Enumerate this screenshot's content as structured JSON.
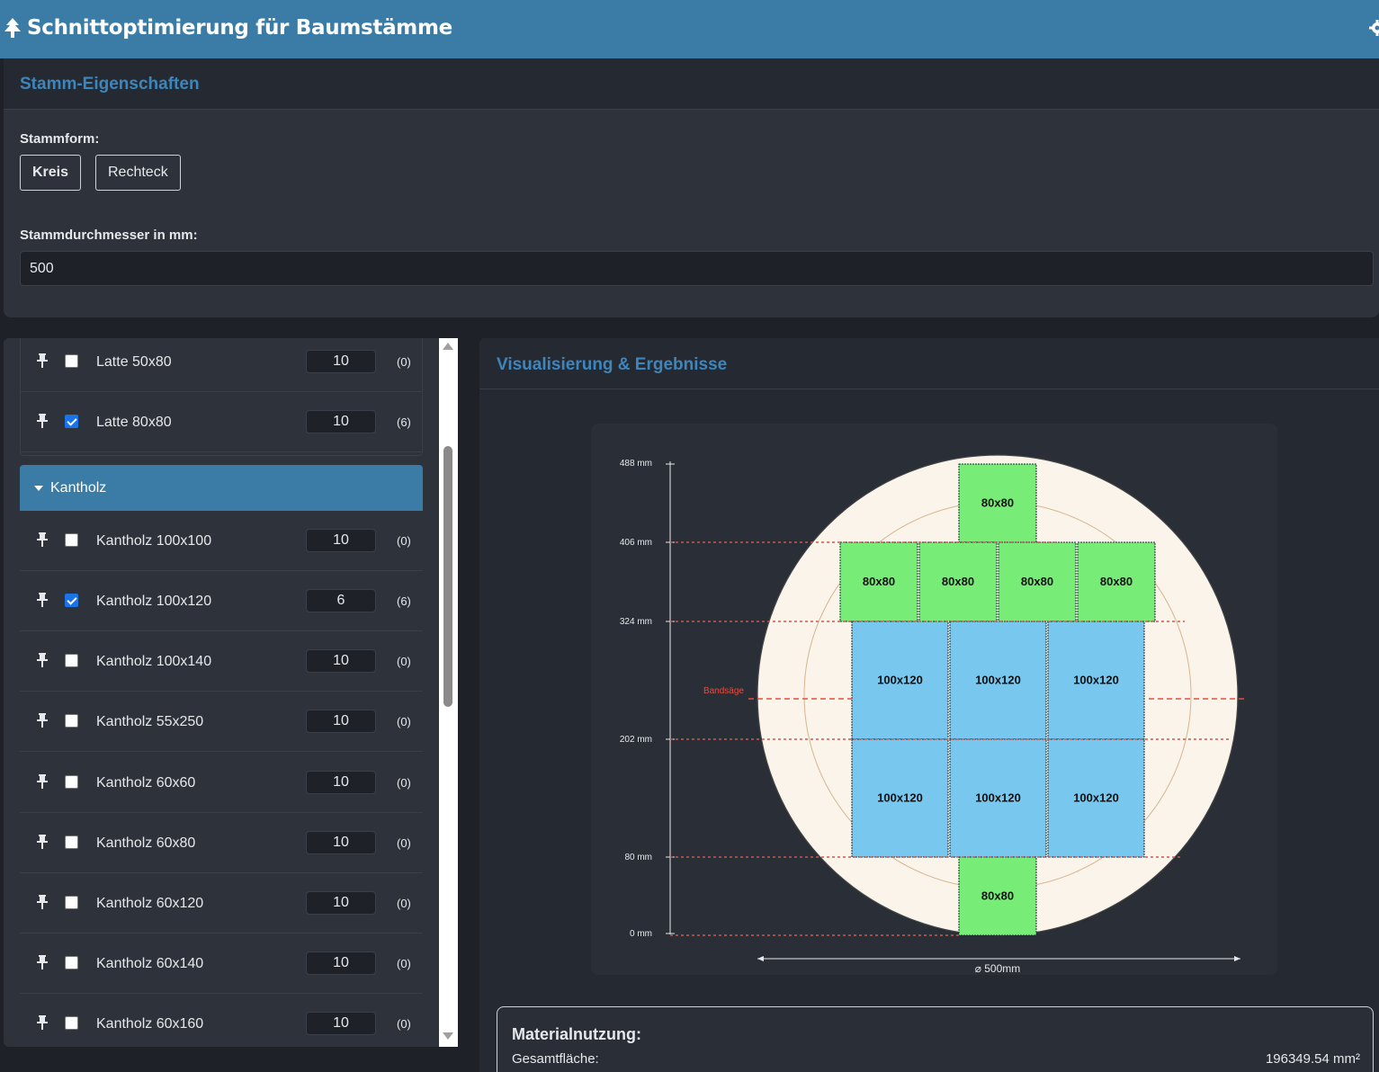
{
  "app": {
    "title": "Schnittoptimierung für Baumstämme",
    "logo_icon": "tree-icon",
    "settings_icon": "gear-icon"
  },
  "props": {
    "header": "Stamm-Eigenschaften",
    "shape_label": "Stammform:",
    "shape_options": [
      "Kreis",
      "Rechteck"
    ],
    "shape_selected": "Kreis",
    "diameter_label": "Stammdurchmesser in mm:",
    "diameter_value": "500"
  },
  "list": {
    "top_items": [
      {
        "name": "Latte 50x80",
        "qty": "10",
        "count": "(0)",
        "checked": false
      },
      {
        "name": "Latte 80x80",
        "qty": "10",
        "count": "(6)",
        "checked": true
      }
    ],
    "group": {
      "title": "Kantholz",
      "items": [
        {
          "name": "Kantholz 100x100",
          "qty": "10",
          "count": "(0)",
          "checked": false
        },
        {
          "name": "Kantholz 100x120",
          "qty": "6",
          "count": "(6)",
          "checked": true
        },
        {
          "name": "Kantholz 100x140",
          "qty": "10",
          "count": "(0)",
          "checked": false
        },
        {
          "name": "Kantholz 55x250",
          "qty": "10",
          "count": "(0)",
          "checked": false
        },
        {
          "name": "Kantholz 60x60",
          "qty": "10",
          "count": "(0)",
          "checked": false
        },
        {
          "name": "Kantholz 60x80",
          "qty": "10",
          "count": "(0)",
          "checked": false
        },
        {
          "name": "Kantholz 60x120",
          "qty": "10",
          "count": "(0)",
          "checked": false
        },
        {
          "name": "Kantholz 60x140",
          "qty": "10",
          "count": "(0)",
          "checked": false
        },
        {
          "name": "Kantholz 60x160",
          "qty": "10",
          "count": "(0)",
          "checked": false
        }
      ]
    }
  },
  "viz": {
    "header": "Visualisierung & Ergebnisse",
    "saw_label": "Bandsäge",
    "diameter_label": "⌀ 500mm",
    "height_labels": [
      "488 mm",
      "406 mm",
      "324 mm",
      "202 mm",
      "80 mm",
      "0 mm"
    ],
    "colors": {
      "small_piece": "#77ec76",
      "large_piece": "#77c7ef",
      "log": "#faf4ea",
      "cut_line": "#e84c3d"
    },
    "pieces": [
      {
        "label": "80x80",
        "row": "top"
      },
      {
        "label": "80x80",
        "row": "second"
      },
      {
        "label": "80x80",
        "row": "second"
      },
      {
        "label": "80x80",
        "row": "second"
      },
      {
        "label": "80x80",
        "row": "second"
      },
      {
        "label": "100x120",
        "row": "middle"
      },
      {
        "label": "100x120",
        "row": "middle"
      },
      {
        "label": "100x120",
        "row": "middle"
      },
      {
        "label": "100x120",
        "row": "lower"
      },
      {
        "label": "100x120",
        "row": "lower"
      },
      {
        "label": "100x120",
        "row": "lower"
      },
      {
        "label": "80x80",
        "row": "bottom"
      }
    ]
  },
  "stats": {
    "title": "Materialnutzung:",
    "total_area_label": "Gesamtfläche:",
    "total_area_value": "196349.54 mm²"
  }
}
